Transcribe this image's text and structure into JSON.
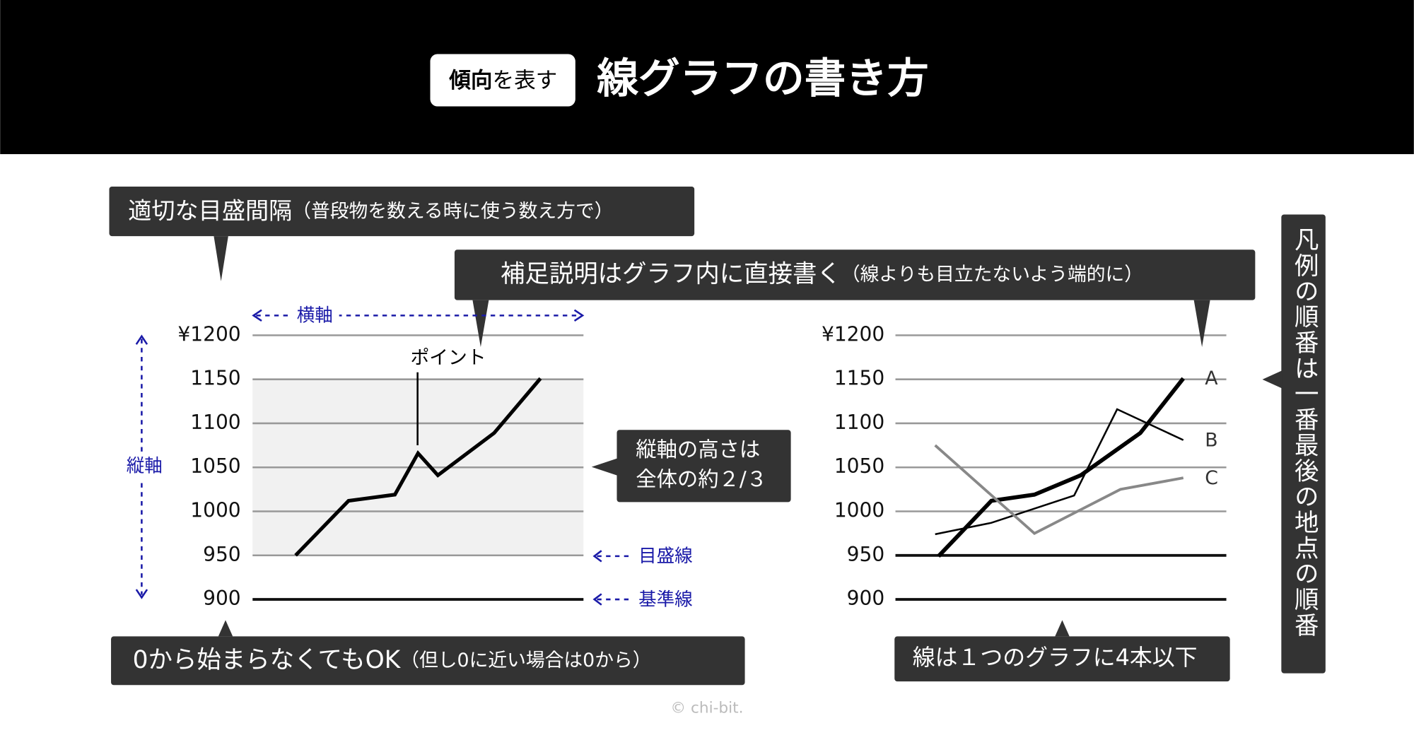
{
  "header": {
    "badge_bold": "傾向",
    "badge_rest": "を表す",
    "title": "線グラフの書き方"
  },
  "callouts": {
    "interval": {
      "main": "適切な目盛間隔",
      "note": "（普段物を数える時に使う数え方で）"
    },
    "annotation": {
      "main": "補足説明はグラフ内に直接書く",
      "note": "（線よりも目立たないよう端的に）"
    },
    "height": [
      "縦軸の高さは",
      "全体の約２/３"
    ],
    "origin": {
      "main": "0から始まらなくてもOK",
      "note": "（但し0に近い場合は0から）"
    },
    "count": "線は１つのグラフに4本以下",
    "legend_order": "凡例の順番は一番最後の地点の順番"
  },
  "labels": {
    "x_axis": "横軸",
    "y_axis": "縦軸",
    "gridline": "目盛線",
    "baseline": "基準線",
    "point": "ポイント"
  },
  "credit": "© chi-bit.",
  "chart_data": [
    {
      "type": "line",
      "x": [
        1.3,
        2.9,
        4.3,
        5.0,
        5.6,
        7.3,
        8.7
      ],
      "values": [
        950,
        1012,
        1019,
        1066,
        1041,
        1089,
        1151
      ],
      "color": "#000000",
      "xlim": [
        0,
        10
      ],
      "ylim": [
        900,
        1200
      ],
      "yticks": [
        900,
        950,
        1000,
        1050,
        1100,
        1150,
        {
          "value": 1200,
          "label": "¥1200"
        }
      ],
      "grid": true
    },
    {
      "type": "line",
      "series": [
        {
          "name": "A",
          "color": "#000000",
          "x": [
            1.3,
            2.9,
            4.2,
            5.6,
            7.4,
            8.7
          ],
          "values": [
            949,
            1012,
            1019,
            1041,
            1089,
            1151
          ]
        },
        {
          "name": "B",
          "color": "#000000",
          "x": [
            1.2,
            2.9,
            5.4,
            6.7,
            8.7
          ],
          "values": [
            974,
            987,
            1018,
            1116,
            1081
          ]
        },
        {
          "name": "C",
          "color": "#888888",
          "x": [
            1.2,
            4.2,
            6.8,
            8.7
          ],
          "values": [
            1075,
            975,
            1025,
            1038
          ]
        }
      ],
      "xlim": [
        0,
        10
      ],
      "ylim": [
        900,
        1200
      ],
      "yticks": [
        900,
        950,
        1000,
        1050,
        1100,
        1150,
        {
          "value": 1200,
          "label": "¥1200"
        }
      ],
      "grid": true
    }
  ]
}
